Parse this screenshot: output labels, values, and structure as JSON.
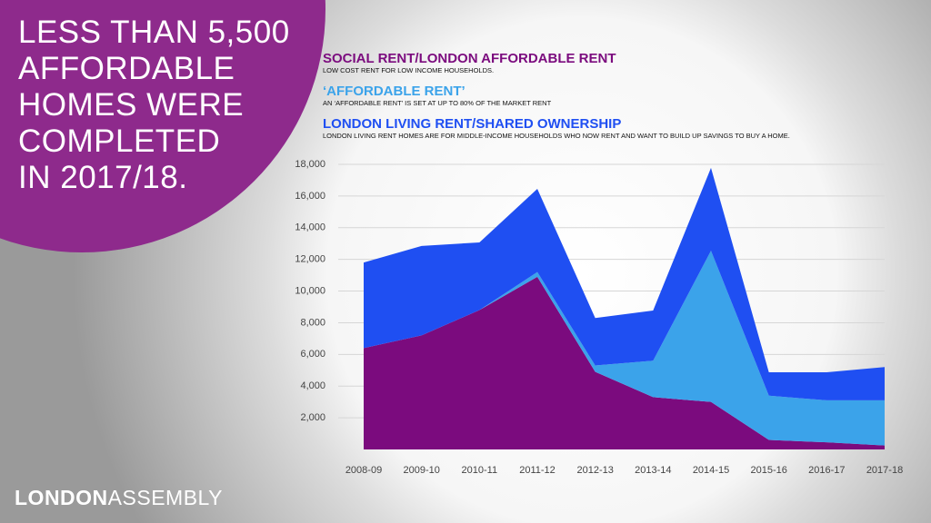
{
  "slide": {
    "headline_lines": [
      "LESS THAN 5,500",
      "AFFORDABLE",
      "HOMES WERE",
      "COMPLETED",
      "IN 2017/18."
    ],
    "logo_bold": "LONDON",
    "logo_light": "ASSEMBLY"
  },
  "chart_data": {
    "type": "stacked_area",
    "categories": [
      "2008-09",
      "2009-10",
      "2010-11",
      "2011-12",
      "2012-13",
      "2013-14",
      "2014-15",
      "2015-16",
      "2016-17",
      "2017-18"
    ],
    "series": [
      {
        "name": "SOCIAL RENT/LONDON AFFORDABLE RENT",
        "description": "LOW COST RENT FOR LOW INCOME HOUSEHOLDS.",
        "color": "#7b0b7e",
        "values": [
          6400,
          7200,
          8800,
          10900,
          4900,
          3300,
          3000,
          600,
          450,
          250
        ]
      },
      {
        "name": "‘AFFORDABLE RENT’",
        "description": "AN ‘AFFORDABLE RENT’ IS SET AT UP TO 80% OF THE MARKET RENT",
        "color": "#3ba3ea",
        "values": [
          0,
          0,
          0,
          300,
          400,
          2300,
          9550,
          2800,
          2650,
          2850
        ]
      },
      {
        "name": "LONDON LIVING RENT/SHARED OWNERSHIP",
        "description": "LONDON LIVING RENT HOMES ARE FOR MIDDLE-INCOME HOUSEHOLDS WHO NOW RENT AND WANT TO BUILD UP SAVINGS TO BUY A HOME.",
        "color": "#1f4ff2",
        "values": [
          5400,
          5650,
          4270,
          5250,
          3000,
          3170,
          5230,
          1470,
          1770,
          2100
        ]
      }
    ],
    "ylim": [
      0,
      18000
    ],
    "yticks": [
      {
        "value": 2000,
        "label": "2,000"
      },
      {
        "value": 4000,
        "label": "4,000"
      },
      {
        "value": 6000,
        "label": "6,000"
      },
      {
        "value": 8000,
        "label": "8,000"
      },
      {
        "value": 10000,
        "label": "10,000"
      },
      {
        "value": 12000,
        "label": "12,000"
      },
      {
        "value": 14000,
        "label": "14,000"
      },
      {
        "value": 16000,
        "label": "16,000"
      },
      {
        "value": 18000,
        "label": "18,000"
      }
    ],
    "grid": true
  }
}
